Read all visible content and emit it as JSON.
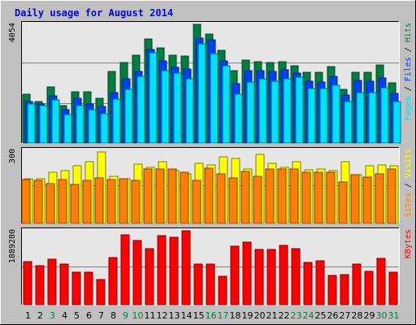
{
  "title": "Daily usage for August 2014",
  "colors": {
    "background": "#C0C0C0",
    "plot_background": "#E6E6E6",
    "title": "#0000FF",
    "hits": "#008040",
    "files": "#0040FF",
    "pages": "#00E0FF",
    "visits": "#FFFF00",
    "sites": "#FF8000",
    "kbytes": "#FF0000",
    "weekday_label": "#000000",
    "weekend_label": "#008040"
  },
  "chart_data": [
    {
      "type": "bar",
      "name": "hits-files-pages",
      "categories": [
        "1",
        "2",
        "3",
        "4",
        "5",
        "6",
        "7",
        "8",
        "9",
        "10",
        "11",
        "12",
        "13",
        "14",
        "15",
        "16",
        "17",
        "18",
        "19",
        "20",
        "21",
        "22",
        "23",
        "24",
        "25",
        "26",
        "27",
        "28",
        "29",
        "30",
        "31"
      ],
      "y_max_label": "4054",
      "ylim": [
        0,
        4054
      ],
      "legend": [
        "Pages",
        "/",
        "Files",
        "/",
        "Hits"
      ],
      "series": [
        {
          "name": "Hits",
          "color_key": "hits",
          "values": [
            1660,
            1430,
            1920,
            1270,
            1750,
            1740,
            1520,
            2430,
            2750,
            2990,
            3560,
            3240,
            2990,
            2970,
            4050,
            3710,
            3170,
            2470,
            2830,
            2770,
            2750,
            2770,
            2640,
            2420,
            2420,
            2620,
            1830,
            2420,
            2420,
            2670,
            2060
          ]
        },
        {
          "name": "Files",
          "color_key": "files",
          "values": [
            1430,
            1330,
            1610,
            1140,
            1530,
            1330,
            1240,
            1730,
            2180,
            2450,
            3190,
            2800,
            2570,
            2530,
            3590,
            3520,
            2800,
            2040,
            2470,
            2480,
            2450,
            2500,
            2380,
            2120,
            2080,
            2270,
            1630,
            2150,
            2120,
            2210,
            1700
          ]
        },
        {
          "name": "Pages",
          "color_key": "pages",
          "values": [
            1330,
            1270,
            1470,
            970,
            1270,
            1140,
            1010,
            1490,
            1820,
            2280,
            3070,
            2470,
            2390,
            2200,
            3380,
            3050,
            2650,
            1670,
            2070,
            2180,
            2110,
            2180,
            2240,
            1850,
            1870,
            1970,
            1430,
            1730,
            1730,
            1900,
            1430
          ]
        }
      ]
    },
    {
      "type": "bar",
      "name": "visits-sites",
      "categories": [
        "1",
        "2",
        "3",
        "4",
        "5",
        "6",
        "7",
        "8",
        "9",
        "10",
        "11",
        "12",
        "13",
        "14",
        "15",
        "16",
        "17",
        "18",
        "19",
        "20",
        "21",
        "22",
        "23",
        "24",
        "25",
        "26",
        "27",
        "28",
        "29",
        "30",
        "31"
      ],
      "y_max_label": "300",
      "ylim": [
        0,
        300
      ],
      "legend": [
        "Sites",
        "/",
        "Visits"
      ],
      "series": [
        {
          "name": "Visits",
          "color_key": "visits",
          "values": [
            184,
            184,
            211,
            218,
            237,
            254,
            292,
            194,
            184,
            245,
            229,
            253,
            217,
            205,
            246,
            240,
            275,
            267,
            222,
            284,
            246,
            230,
            255,
            221,
            222,
            218,
            255,
            200,
            238,
            240,
            238
          ]
        },
        {
          "name": "Sites",
          "color_key": "sites",
          "values": [
            181,
            176,
            165,
            181,
            161,
            178,
            187,
            180,
            184,
            176,
            225,
            223,
            222,
            210,
            177,
            227,
            202,
            188,
            213,
            193,
            223,
            222,
            223,
            210,
            210,
            211,
            171,
            200,
            190,
            204,
            223
          ]
        }
      ]
    },
    {
      "type": "bar",
      "name": "kbytes",
      "categories": [
        "1",
        "2",
        "3",
        "4",
        "5",
        "6",
        "7",
        "8",
        "9",
        "10",
        "11",
        "12",
        "13",
        "14",
        "15",
        "16",
        "17",
        "18",
        "19",
        "20",
        "21",
        "22",
        "23",
        "24",
        "25",
        "26",
        "27",
        "28",
        "29",
        "30",
        "31"
      ],
      "y_max_label": "1889280",
      "ylim": [
        0,
        1889280
      ],
      "legend": [
        "KBytes"
      ],
      "series": [
        {
          "name": "KBytes",
          "color_key": "kbytes",
          "values": [
            1100000,
            1000000,
            1170000,
            1030000,
            835000,
            830000,
            650000,
            1210000,
            1780000,
            1640000,
            1430000,
            1760000,
            1720000,
            1889280,
            1030000,
            1030000,
            720000,
            1490000,
            1600000,
            1410000,
            1410000,
            1520000,
            1430000,
            1070000,
            1120000,
            750000,
            770000,
            1030000,
            850000,
            1190000,
            840000
          ]
        }
      ]
    }
  ],
  "weekend_days": [
    "3",
    "9",
    "10",
    "16",
    "17",
    "23",
    "24",
    "30",
    "31"
  ]
}
